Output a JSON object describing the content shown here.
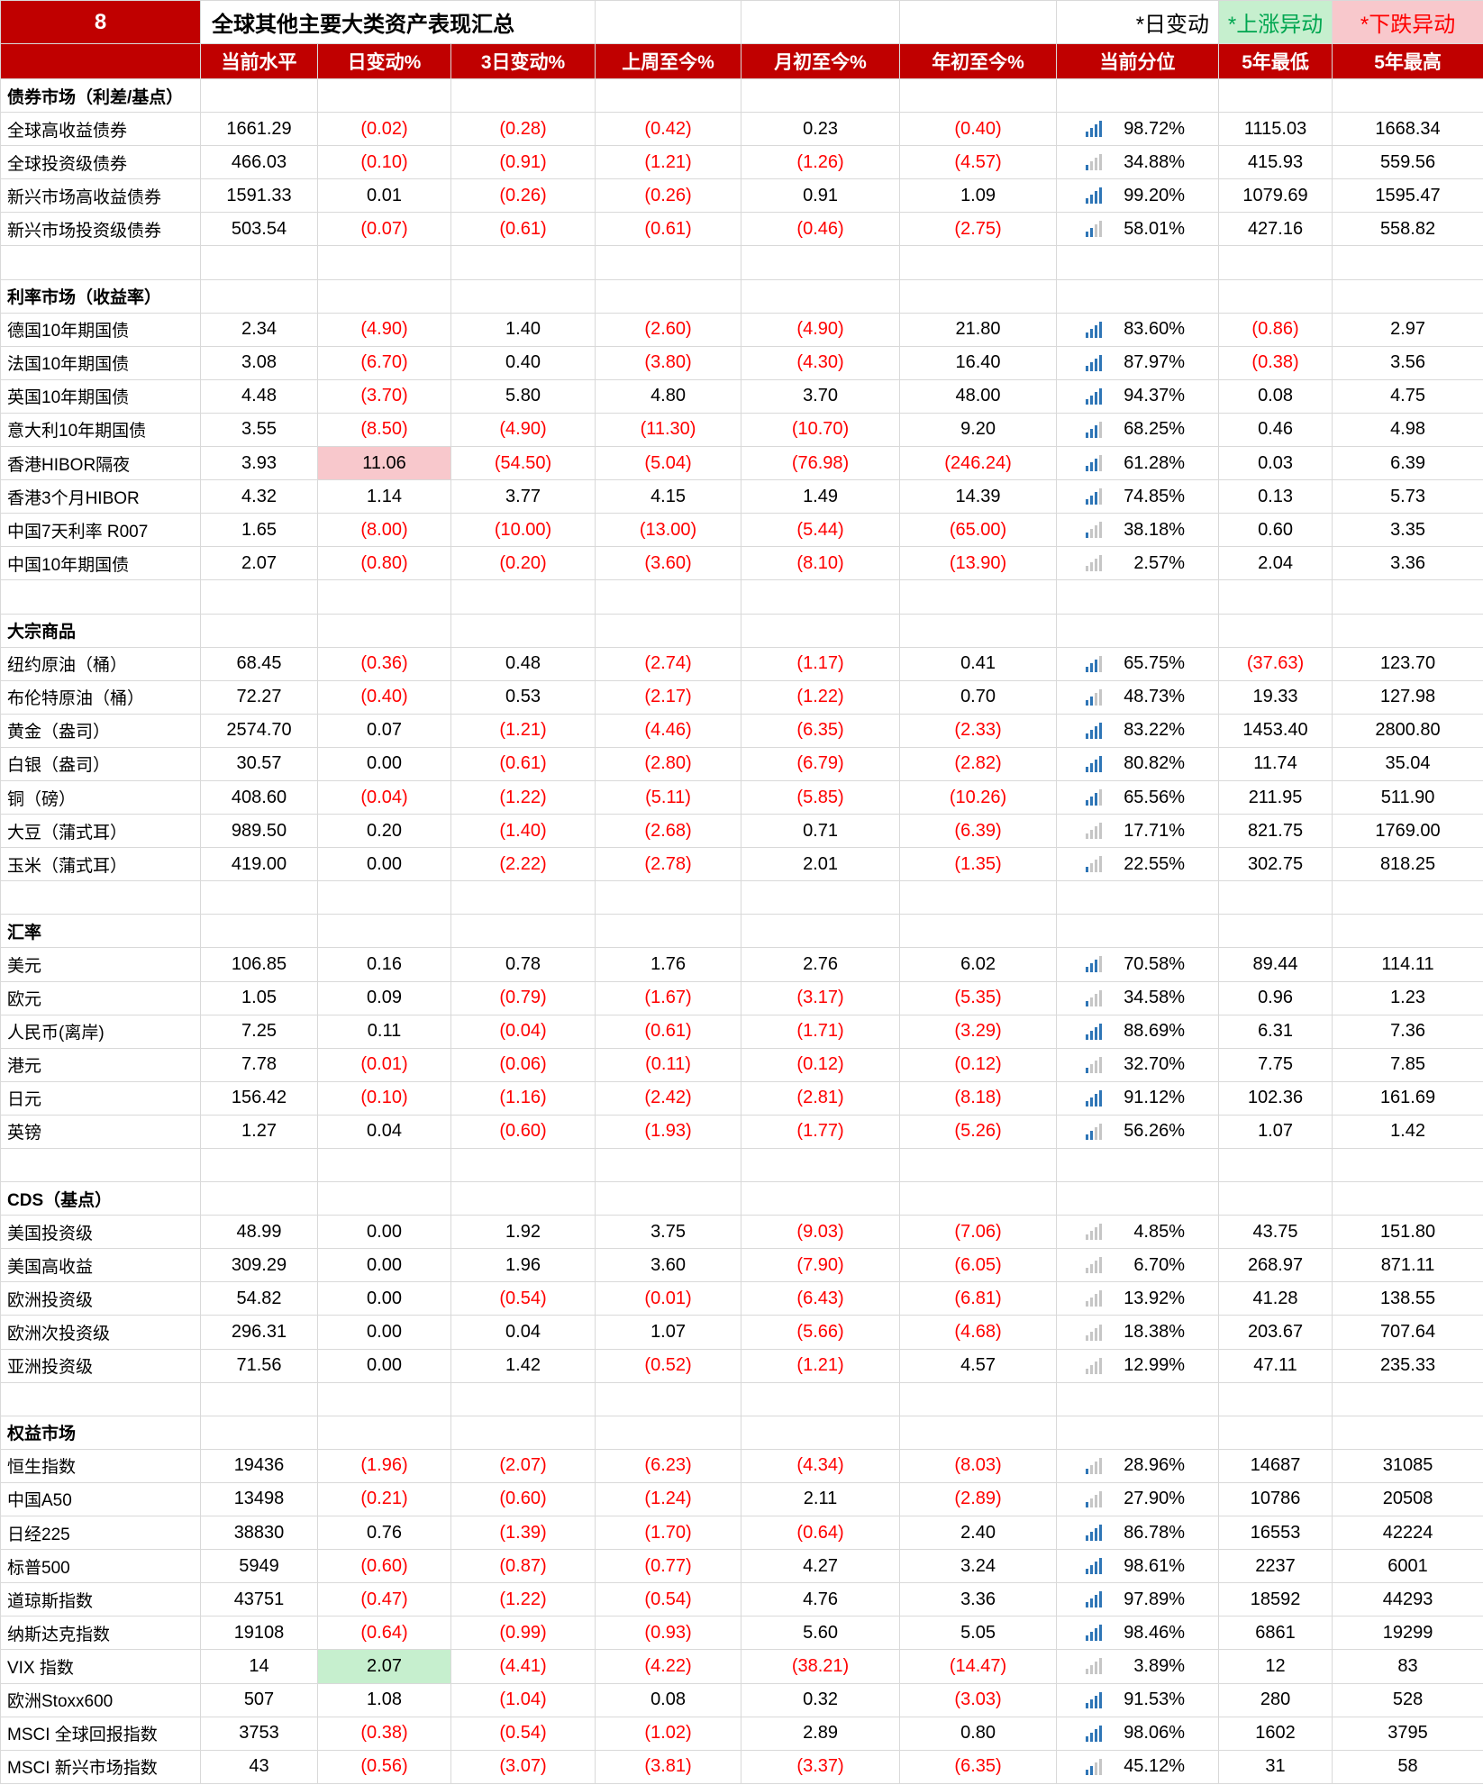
{
  "legend": {
    "page_number": "8",
    "title": "全球其他主要大类资产表现汇总",
    "day_change_note": "*日变动",
    "up_note": "*上涨异动",
    "down_note": "*下跌异动"
  },
  "colors": {
    "header_bg": "#C00000",
    "negative": "#FF0000",
    "up_bg": "#C6EFCE",
    "up_text": "#00A650",
    "down_bg": "#F8C8CC",
    "down_text": "#FF0000",
    "bar_filled": "#2E75B6",
    "bar_empty": "#C6C6C6"
  },
  "chart_data": {
    "type": "table",
    "title": "全球其他主要大类资产表现汇总",
    "columns": [
      "当前水平",
      "日变动%",
      "3日变动%",
      "上周至今%",
      "月初至今%",
      "年初至今%",
      "当前分位",
      "5年最低",
      "5年最高"
    ],
    "sections": [
      {
        "name": "债券市场（利差/基点）",
        "rows": [
          {
            "label": "全球高收益债券",
            "v": [
              "1661.29",
              "(0.02)",
              "(0.28)",
              "(0.42)",
              "0.23",
              "(0.40)",
              "98.72%",
              "1115.03",
              "1668.34"
            ],
            "pct": 98.72
          },
          {
            "label": "全球投资级债券",
            "v": [
              "466.03",
              "(0.10)",
              "(0.91)",
              "(1.21)",
              "(1.26)",
              "(4.57)",
              "34.88%",
              "415.93",
              "559.56"
            ],
            "pct": 34.88
          },
          {
            "label": "新兴市场高收益债券",
            "v": [
              "1591.33",
              "0.01",
              "(0.26)",
              "(0.26)",
              "0.91",
              "1.09",
              "99.20%",
              "1079.69",
              "1595.47"
            ],
            "pct": 99.2
          },
          {
            "label": "新兴市场投资级债券",
            "v": [
              "503.54",
              "(0.07)",
              "(0.61)",
              "(0.61)",
              "(0.46)",
              "(2.75)",
              "58.01%",
              "427.16",
              "558.82"
            ],
            "pct": 58.01
          }
        ]
      },
      {
        "name": "利率市场（收益率）",
        "rows": [
          {
            "label": "德国10年期国债",
            "v": [
              "2.34",
              "(4.90)",
              "1.40",
              "(2.60)",
              "(4.90)",
              "21.80",
              "83.60%",
              "(0.86)",
              "2.97"
            ],
            "pct": 83.6
          },
          {
            "label": "法国10年期国债",
            "v": [
              "3.08",
              "(6.70)",
              "0.40",
              "(3.80)",
              "(4.30)",
              "16.40",
              "87.97%",
              "(0.38)",
              "3.56"
            ],
            "pct": 87.97
          },
          {
            "label": "英国10年期国债",
            "v": [
              "4.48",
              "(3.70)",
              "5.80",
              "4.80",
              "3.70",
              "48.00",
              "94.37%",
              "0.08",
              "4.75"
            ],
            "pct": 94.37
          },
          {
            "label": "意大利10年期国债",
            "v": [
              "3.55",
              "(8.50)",
              "(4.90)",
              "(11.30)",
              "(10.70)",
              "9.20",
              "68.25%",
              "0.46",
              "4.98"
            ],
            "pct": 68.25
          },
          {
            "label": "香港HIBOR隔夜",
            "v": [
              "3.93",
              "11.06",
              "(54.50)",
              "(5.04)",
              "(76.98)",
              "(246.24)",
              "61.28%",
              "0.03",
              "6.39"
            ],
            "pct": 61.28,
            "hl": {
              "i": 1,
              "c": "down"
            }
          },
          {
            "label": "香港3个月HIBOR",
            "v": [
              "4.32",
              "1.14",
              "3.77",
              "4.15",
              "1.49",
              "14.39",
              "74.85%",
              "0.13",
              "5.73"
            ],
            "pct": 74.85
          },
          {
            "label": "中国7天利率 R007",
            "v": [
              "1.65",
              "(8.00)",
              "(10.00)",
              "(13.00)",
              "(5.44)",
              "(65.00)",
              "38.18%",
              "0.60",
              "3.35"
            ],
            "pct": 38.18
          },
          {
            "label": "中国10年期国债",
            "v": [
              "2.07",
              "(0.80)",
              "(0.20)",
              "(3.60)",
              "(8.10)",
              "(13.90)",
              "2.57%",
              "2.04",
              "3.36"
            ],
            "pct": 2.57
          }
        ]
      },
      {
        "name": "大宗商品",
        "rows": [
          {
            "label": "纽约原油（桶）",
            "v": [
              "68.45",
              "(0.36)",
              "0.48",
              "(2.74)",
              "(1.17)",
              "0.41",
              "65.75%",
              "(37.63)",
              "123.70"
            ],
            "pct": 65.75
          },
          {
            "label": "布伦特原油（桶）",
            "v": [
              "72.27",
              "(0.40)",
              "0.53",
              "(2.17)",
              "(1.22)",
              "0.70",
              "48.73%",
              "19.33",
              "127.98"
            ],
            "pct": 48.73
          },
          {
            "label": "黄金（盎司）",
            "v": [
              "2574.70",
              "0.07",
              "(1.21)",
              "(4.46)",
              "(6.35)",
              "(2.33)",
              "83.22%",
              "1453.40",
              "2800.80"
            ],
            "pct": 83.22
          },
          {
            "label": "白银（盎司）",
            "v": [
              "30.57",
              "0.00",
              "(0.61)",
              "(2.80)",
              "(6.79)",
              "(2.82)",
              "80.82%",
              "11.74",
              "35.04"
            ],
            "pct": 80.82
          },
          {
            "label": "铜（磅）",
            "v": [
              "408.60",
              "(0.04)",
              "(1.22)",
              "(5.11)",
              "(5.85)",
              "(10.26)",
              "65.56%",
              "211.95",
              "511.90"
            ],
            "pct": 65.56
          },
          {
            "label": "大豆（蒲式耳）",
            "v": [
              "989.50",
              "0.20",
              "(1.40)",
              "(2.68)",
              "0.71",
              "(6.39)",
              "17.71%",
              "821.75",
              "1769.00"
            ],
            "pct": 17.71
          },
          {
            "label": "玉米（蒲式耳）",
            "v": [
              "419.00",
              "0.00",
              "(2.22)",
              "(2.78)",
              "2.01",
              "(1.35)",
              "22.55%",
              "302.75",
              "818.25"
            ],
            "pct": 22.55
          }
        ]
      },
      {
        "name": "汇率",
        "rows": [
          {
            "label": "美元",
            "v": [
              "106.85",
              "0.16",
              "0.78",
              "1.76",
              "2.76",
              "6.02",
              "70.58%",
              "89.44",
              "114.11"
            ],
            "pct": 70.58
          },
          {
            "label": "欧元",
            "v": [
              "1.05",
              "0.09",
              "(0.79)",
              "(1.67)",
              "(3.17)",
              "(5.35)",
              "34.58%",
              "0.96",
              "1.23"
            ],
            "pct": 34.58
          },
          {
            "label": "人民币(离岸)",
            "v": [
              "7.25",
              "0.11",
              "(0.04)",
              "(0.61)",
              "(1.71)",
              "(3.29)",
              "88.69%",
              "6.31",
              "7.36"
            ],
            "pct": 88.69
          },
          {
            "label": "港元",
            "v": [
              "7.78",
              "(0.01)",
              "(0.06)",
              "(0.11)",
              "(0.12)",
              "(0.12)",
              "32.70%",
              "7.75",
              "7.85"
            ],
            "pct": 32.7
          },
          {
            "label": "日元",
            "v": [
              "156.42",
              "(0.10)",
              "(1.16)",
              "(2.42)",
              "(2.81)",
              "(8.18)",
              "91.12%",
              "102.36",
              "161.69"
            ],
            "pct": 91.12
          },
          {
            "label": "英镑",
            "v": [
              "1.27",
              "0.04",
              "(0.60)",
              "(1.93)",
              "(1.77)",
              "(5.26)",
              "56.26%",
              "1.07",
              "1.42"
            ],
            "pct": 56.26
          }
        ]
      },
      {
        "name": "CDS（基点）",
        "rows": [
          {
            "label": "美国投资级",
            "v": [
              "48.99",
              "0.00",
              "1.92",
              "3.75",
              "(9.03)",
              "(7.06)",
              "4.85%",
              "43.75",
              "151.80"
            ],
            "pct": 4.85
          },
          {
            "label": "美国高收益",
            "v": [
              "309.29",
              "0.00",
              "1.96",
              "3.60",
              "(7.90)",
              "(6.05)",
              "6.70%",
              "268.97",
              "871.11"
            ],
            "pct": 6.7
          },
          {
            "label": "欧洲投资级",
            "v": [
              "54.82",
              "0.00",
              "(0.54)",
              "(0.01)",
              "(6.43)",
              "(6.81)",
              "13.92%",
              "41.28",
              "138.55"
            ],
            "pct": 13.92
          },
          {
            "label": "欧洲次投资级",
            "v": [
              "296.31",
              "0.00",
              "0.04",
              "1.07",
              "(5.66)",
              "(4.68)",
              "18.38%",
              "203.67",
              "707.64"
            ],
            "pct": 18.38
          },
          {
            "label": "亚洲投资级",
            "v": [
              "71.56",
              "0.00",
              "1.42",
              "(0.52)",
              "(1.21)",
              "4.57",
              "12.99%",
              "47.11",
              "235.33"
            ],
            "pct": 12.99
          }
        ]
      },
      {
        "name": "权益市场",
        "rows": [
          {
            "label": "恒生指数",
            "v": [
              "19436",
              "(1.96)",
              "(2.07)",
              "(6.23)",
              "(4.34)",
              "(8.03)",
              "28.96%",
              "14687",
              "31085"
            ],
            "pct": 28.96
          },
          {
            "label": "中国A50",
            "v": [
              "13498",
              "(0.21)",
              "(0.60)",
              "(1.24)",
              "2.11",
              "(2.89)",
              "27.90%",
              "10786",
              "20508"
            ],
            "pct": 27.9
          },
          {
            "label": "日经225",
            "v": [
              "38830",
              "0.76",
              "(1.39)",
              "(1.70)",
              "(0.64)",
              "2.40",
              "86.78%",
              "16553",
              "42224"
            ],
            "pct": 86.78
          },
          {
            "label": "标普500",
            "v": [
              "5949",
              "(0.60)",
              "(0.87)",
              "(0.77)",
              "4.27",
              "3.24",
              "98.61%",
              "2237",
              "6001"
            ],
            "pct": 98.61
          },
          {
            "label": "道琼斯指数",
            "v": [
              "43751",
              "(0.47)",
              "(1.22)",
              "(0.54)",
              "4.76",
              "3.36",
              "97.89%",
              "18592",
              "44293"
            ],
            "pct": 97.89
          },
          {
            "label": "纳斯达克指数",
            "v": [
              "19108",
              "(0.64)",
              "(0.99)",
              "(0.93)",
              "5.60",
              "5.05",
              "98.46%",
              "6861",
              "19299"
            ],
            "pct": 98.46
          },
          {
            "label": "VIX 指数",
            "v": [
              "14",
              "2.07",
              "(4.41)",
              "(4.22)",
              "(38.21)",
              "(14.47)",
              "3.89%",
              "12",
              "83"
            ],
            "pct": 3.89,
            "hl": {
              "i": 1,
              "c": "up"
            }
          },
          {
            "label": "欧洲Stoxx600",
            "v": [
              "507",
              "1.08",
              "(1.04)",
              "0.08",
              "0.32",
              "(3.03)",
              "91.53%",
              "280",
              "528"
            ],
            "pct": 91.53
          },
          {
            "label": "MSCI 全球回报指数",
            "v": [
              "3753",
              "(0.38)",
              "(0.54)",
              "(1.02)",
              "2.89",
              "0.80",
              "98.06%",
              "1602",
              "3795"
            ],
            "pct": 98.06
          },
          {
            "label": "MSCI 新兴市场指数",
            "v": [
              "43",
              "(0.56)",
              "(3.07)",
              "(3.81)",
              "(3.37)",
              "(6.35)",
              "45.12%",
              "31",
              "58"
            ],
            "pct": 45.12
          }
        ]
      }
    ]
  }
}
